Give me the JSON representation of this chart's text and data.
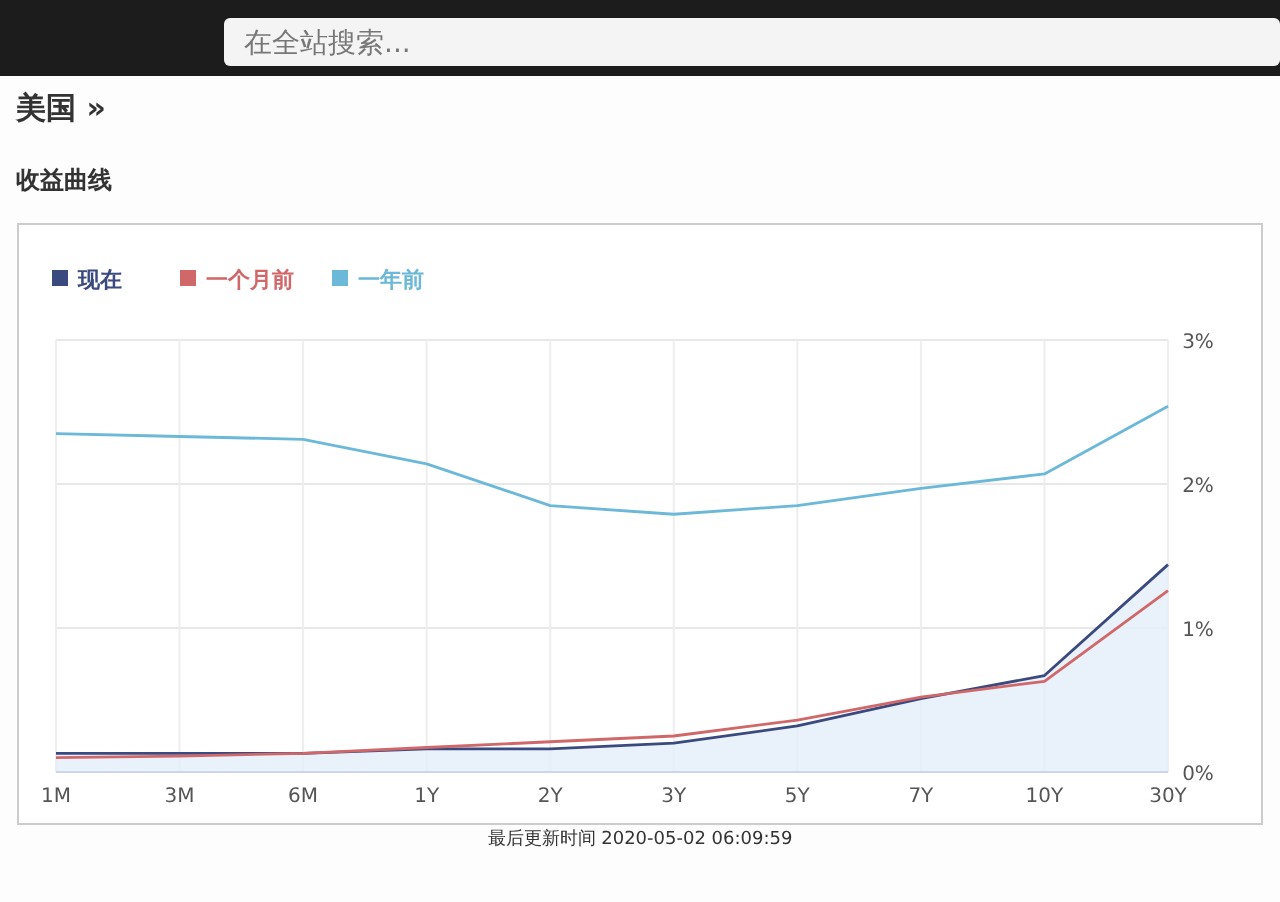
{
  "chart_data": {
    "type": "line",
    "title": "收益曲线",
    "subtitle": "美国 »",
    "annotations": [
      "在全站搜索...",
      "最后更新时间 2020-05-02 06:09:59"
    ],
    "categories": [
      "1M",
      "3M",
      "6M",
      "1Y",
      "2Y",
      "3Y",
      "5Y",
      "7Y",
      "10Y",
      "30Y"
    ],
    "series": [
      {
        "name": "现在",
        "type": "area",
        "color": "#3b4a7e",
        "values": [
          0.13,
          0.13,
          0.13,
          0.16,
          0.16,
          0.2,
          0.32,
          0.51,
          0.67,
          1.44
        ]
      },
      {
        "name": "一个月前",
        "color": "#d0686a",
        "values": [
          0.1,
          0.11,
          0.13,
          0.17,
          0.21,
          0.25,
          0.36,
          0.52,
          0.63,
          1.26
        ]
      },
      {
        "name": "一年前",
        "color": "#6bb8d8",
        "values": [
          2.35,
          2.33,
          2.31,
          2.14,
          1.85,
          1.79,
          1.85,
          1.97,
          2.07,
          2.54
        ]
      }
    ],
    "ylim": [
      0,
      3
    ],
    "yticks": [
      {
        "value": 0,
        "label": "0%"
      },
      {
        "value": 1,
        "label": "1%"
      },
      {
        "value": 2,
        "label": "2%"
      },
      {
        "value": 3,
        "label": "3%"
      }
    ],
    "grid": true,
    "legend": "top left"
  }
}
